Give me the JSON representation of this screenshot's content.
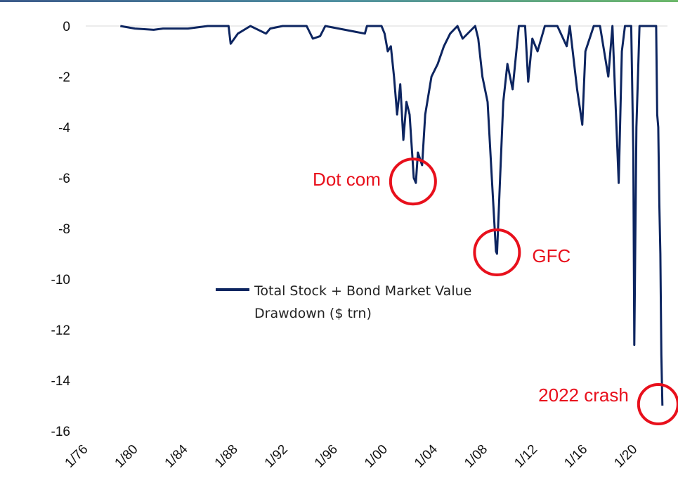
{
  "chart_data": {
    "type": "line",
    "title": "",
    "xlabel": "",
    "ylabel": "",
    "ylim": [
      -16,
      0
    ],
    "yticks": [
      "0",
      "-2",
      "-4",
      "-6",
      "-8",
      "-10",
      "-12",
      "-14",
      "-16"
    ],
    "xticks": [
      "1/76",
      "1/80",
      "1/84",
      "1/88",
      "1/92",
      "1/96",
      "1/00",
      "1/04",
      "1/08",
      "1/12",
      "1/16",
      "1/20"
    ],
    "xlim": [
      "1976-01",
      "2022-12"
    ],
    "grid": false,
    "legend_placement": "center",
    "series": [
      {
        "name": "Total Stock + Bond Market Value Drawdown ($ trn)",
        "color": "#0d2560",
        "points": [
          [
            "1979-01",
            0
          ],
          [
            "1980-03",
            -0.1
          ],
          [
            "1981-09",
            -0.15
          ],
          [
            "1982-06",
            -0.1
          ],
          [
            "1984-06",
            -0.1
          ],
          [
            "1986-01",
            0
          ],
          [
            "1987-09",
            0
          ],
          [
            "1987-11",
            -0.7
          ],
          [
            "1988-06",
            -0.3
          ],
          [
            "1989-06",
            0
          ],
          [
            "1990-09",
            -0.3
          ],
          [
            "1991-01",
            -0.1
          ],
          [
            "1992-01",
            0
          ],
          [
            "1993-12",
            0
          ],
          [
            "1994-06",
            -0.5
          ],
          [
            "1995-01",
            -0.4
          ],
          [
            "1995-06",
            0
          ],
          [
            "1998-08",
            -0.3
          ],
          [
            "1998-10",
            0
          ],
          [
            "1999-12",
            0
          ],
          [
            "2000-03",
            -0.3
          ],
          [
            "2000-06",
            -1
          ],
          [
            "2000-09",
            -0.8
          ],
          [
            "2000-12",
            -2
          ],
          [
            "2001-03",
            -3.5
          ],
          [
            "2001-06",
            -2.3
          ],
          [
            "2001-09",
            -4.5
          ],
          [
            "2001-12",
            -3
          ],
          [
            "2002-03",
            -3.5
          ],
          [
            "2002-07",
            -6
          ],
          [
            "2002-09",
            -6.2
          ],
          [
            "2002-11",
            -5
          ],
          [
            "2003-03",
            -5.5
          ],
          [
            "2003-06",
            -3.5
          ],
          [
            "2003-12",
            -2
          ],
          [
            "2004-06",
            -1.5
          ],
          [
            "2004-12",
            -0.8
          ],
          [
            "2005-06",
            -0.3
          ],
          [
            "2006-01",
            0
          ],
          [
            "2006-06",
            -0.5
          ],
          [
            "2007-06",
            0
          ],
          [
            "2007-09",
            -0.5
          ],
          [
            "2008-01",
            -2
          ],
          [
            "2008-06",
            -3
          ],
          [
            "2008-10",
            -6
          ],
          [
            "2009-02",
            -8.9
          ],
          [
            "2009-03",
            -9
          ],
          [
            "2009-06",
            -6
          ],
          [
            "2009-09",
            -3
          ],
          [
            "2010-01",
            -1.5
          ],
          [
            "2010-06",
            -2.5
          ],
          [
            "2010-12",
            0
          ],
          [
            "2011-06",
            0
          ],
          [
            "2011-09",
            -2.2
          ],
          [
            "2012-01",
            -0.5
          ],
          [
            "2012-06",
            -1
          ],
          [
            "2013-01",
            0
          ],
          [
            "2014-01",
            0
          ],
          [
            "2014-10",
            -0.8
          ],
          [
            "2015-01",
            0
          ],
          [
            "2015-08",
            -2.5
          ],
          [
            "2016-01",
            -3.9
          ],
          [
            "2016-04",
            -1
          ],
          [
            "2016-12",
            0
          ],
          [
            "2017-06",
            0
          ],
          [
            "2018-02",
            -2
          ],
          [
            "2018-06",
            0
          ],
          [
            "2018-12",
            -6.2
          ],
          [
            "2019-03",
            -1
          ],
          [
            "2019-06",
            0
          ],
          [
            "2019-12",
            0
          ],
          [
            "2020-02",
            -5
          ],
          [
            "2020-03",
            -12.6
          ],
          [
            "2020-05",
            -4
          ],
          [
            "2020-08",
            0
          ],
          [
            "2021-06",
            0
          ],
          [
            "2021-12",
            0
          ],
          [
            "2022-01",
            -3.5
          ],
          [
            "2022-02",
            -4
          ],
          [
            "2022-03",
            -7
          ],
          [
            "2022-04",
            -9
          ],
          [
            "2022-05",
            -13
          ],
          [
            "2022-06",
            -15
          ]
        ]
      }
    ],
    "annotations": [
      {
        "text": "Dot com",
        "date": "2002-09",
        "value": -6.2,
        "color": "#e8101c"
      },
      {
        "text": "GFC",
        "date": "2009-03",
        "value": -9,
        "color": "#e8101c"
      },
      {
        "text": "2022 crash",
        "date": "2022-06",
        "value": -15,
        "color": "#e8101c"
      }
    ]
  },
  "legend": {
    "line1": "Total Stock + Bond Market Value",
    "line2": "Drawdown ($ trn)"
  }
}
